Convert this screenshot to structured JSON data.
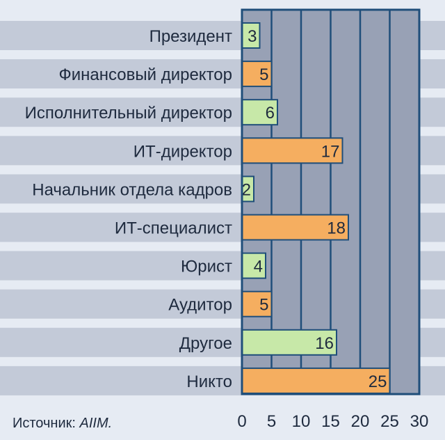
{
  "source": {
    "label": "Источник:",
    "name": "AIIM."
  },
  "colors": {
    "page_background": "#e6ebf3",
    "row_stripe": "#c3cad8",
    "plot_background": "#98a1b5",
    "plot_border": "#1f4e7a",
    "bar_orange": "#f5ae60",
    "bar_green": "#c7e8a8",
    "bar_border": "#1f4e7a",
    "text": "#1e2a3e"
  },
  "chart_data": {
    "type": "bar",
    "orientation": "horizontal",
    "categories": [
      "Президент",
      "Финансовый директор",
      "Исполнительный директор",
      "ИТ-директор",
      "Начальник отдела кадров",
      "ИТ-специалист",
      "Юрист",
      "Аудитор",
      "Другое",
      "Никто"
    ],
    "values": [
      3,
      5,
      6,
      17,
      2,
      18,
      4,
      5,
      16,
      25
    ],
    "bar_colors": [
      "green",
      "orange",
      "green",
      "orange",
      "green",
      "orange",
      "green",
      "orange",
      "green",
      "orange"
    ],
    "xlim": [
      0,
      30
    ],
    "xticks": [
      0,
      5,
      10,
      15,
      20,
      25,
      30
    ],
    "data_labels": true,
    "grid": true,
    "legend": "none"
  }
}
